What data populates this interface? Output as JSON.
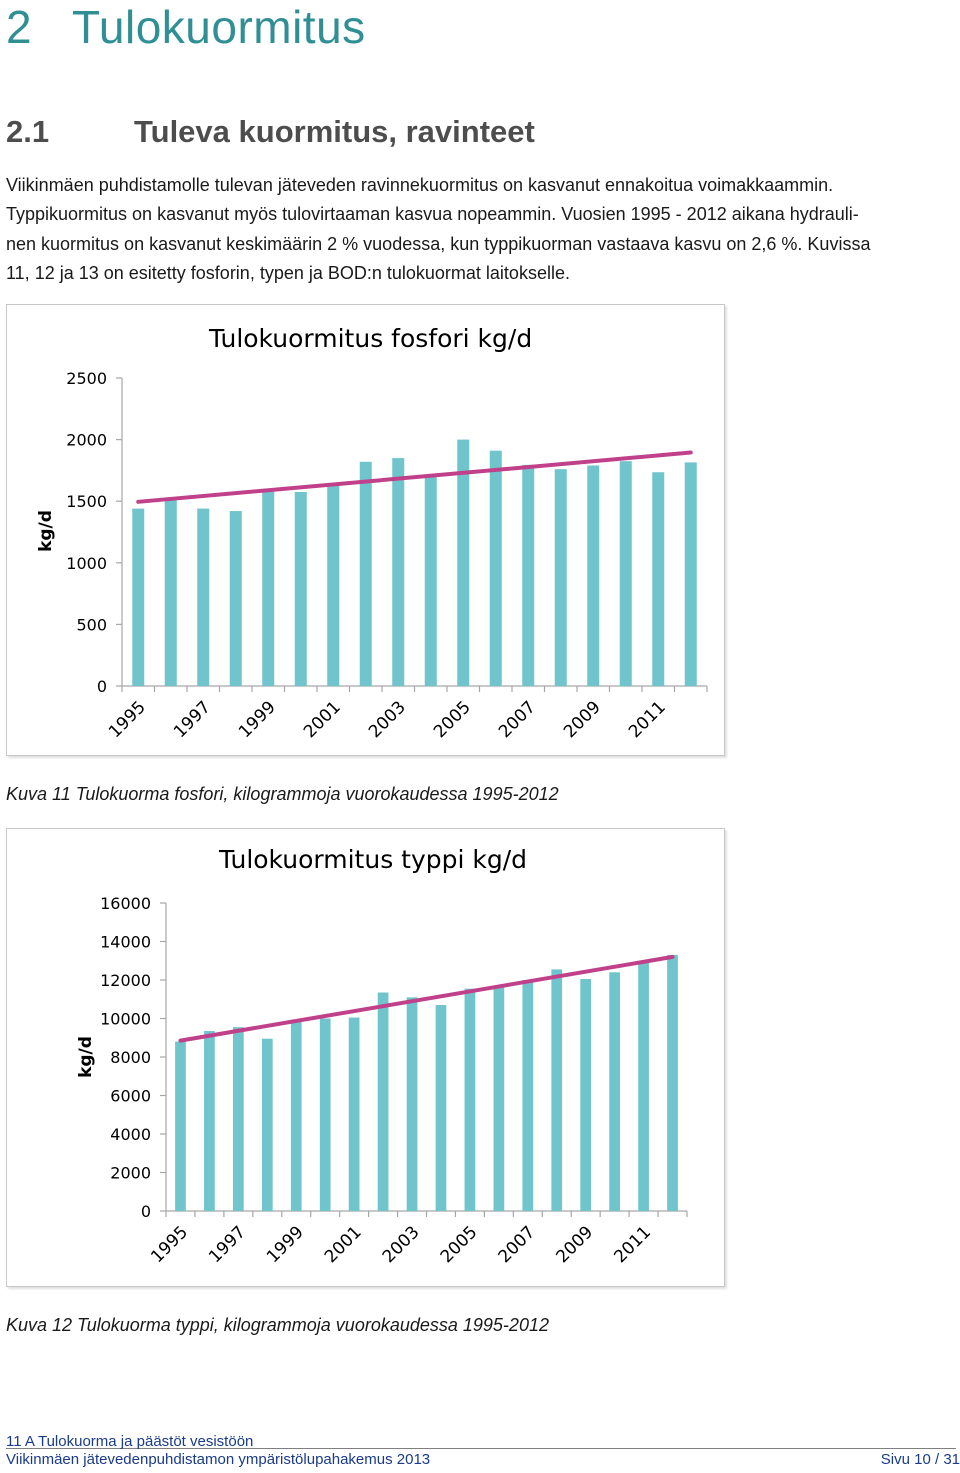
{
  "heading1": {
    "number": "2",
    "title": "Tulokuormitus"
  },
  "heading2": {
    "number": "2.1",
    "title": "Tuleva kuormitus, ravinteet"
  },
  "paragraph_lines": [
    "Viikinmäen puhdistamolle tulevan jäteveden ravinnekuormitus on kasvanut ennakoitua voimakkaammin.",
    "Typpikuormitus on kasvanut myös tulovirtaaman kasvua nopeammin. Vuosien 1995 - 2012 aikana hydrauli-",
    "nen kuormitus on kasvanut keskimäärin 2 % vuodessa, kun typpikuorman vastaava kasvu on 2,6 %. Kuvissa",
    "11, 12 ja 13 on esitetty fosforin, typen ja BOD:n tulokuormat laitokselle."
  ],
  "colors": {
    "heading": "#2f8f95",
    "bar": "#70c4cc",
    "trend": "#c0418a",
    "axis": "#a6a6a6",
    "footer": "#1a3a8a"
  },
  "chart_data": [
    {
      "type": "bar",
      "title": "Tulokuormitus fosfori kg/d",
      "ylabel": "kg/d",
      "xlabel": "",
      "ylim": [
        0,
        2500
      ],
      "yticks": [
        0,
        500,
        1000,
        1500,
        2000,
        2500
      ],
      "categories": [
        "1995",
        "1996",
        "1997",
        "1998",
        "1999",
        "2000",
        "2001",
        "2002",
        "2003",
        "2004",
        "2005",
        "2006",
        "2007",
        "2008",
        "2009",
        "2010",
        "2011",
        "2012"
      ],
      "x_tick_labels": [
        "1995",
        "1997",
        "1999",
        "2001",
        "2003",
        "2005",
        "2007",
        "2009",
        "2011"
      ],
      "values": [
        1440,
        1510,
        1440,
        1420,
        1590,
        1575,
        1645,
        1820,
        1850,
        1700,
        2000,
        1910,
        1795,
        1760,
        1790,
        1825,
        1735,
        1815
      ],
      "trendline": {
        "start": 1495,
        "end": 1895
      },
      "grid": false,
      "legend": "none"
    },
    {
      "type": "bar",
      "title": "Tulokuormitus typpi kg/d",
      "ylabel": "kg/d",
      "xlabel": "",
      "ylim": [
        0,
        16000
      ],
      "yticks": [
        0,
        2000,
        4000,
        6000,
        8000,
        10000,
        12000,
        14000,
        16000
      ],
      "categories": [
        "1995",
        "1996",
        "1997",
        "1998",
        "1999",
        "2000",
        "2001",
        "2002",
        "2003",
        "2004",
        "2005",
        "2006",
        "2007",
        "2008",
        "2009",
        "2010",
        "2011",
        "2012"
      ],
      "x_tick_labels": [
        "1995",
        "1997",
        "1999",
        "2001",
        "2003",
        "2005",
        "2007",
        "2009",
        "2011"
      ],
      "values": [
        8800,
        9350,
        9550,
        8950,
        9950,
        10000,
        10050,
        11350,
        11100,
        10700,
        11550,
        11650,
        12000,
        12550,
        12050,
        12400,
        12950,
        13300
      ],
      "trendline": {
        "start": 8850,
        "end": 13200
      },
      "grid": false,
      "legend": "none"
    }
  ],
  "captions": [
    "Kuva 11 Tulokuorma fosfori, kilogrammoja vuorokaudessa 1995-2012",
    "Kuva 12 Tulokuorma typpi, kilogrammoja vuorokaudessa 1995-2012"
  ],
  "footer": {
    "section": "11 A Tulokuorma ja päästöt vesistöön",
    "document": "Viikinmäen jätevedenpuhdistamon ympäristölupahakemus 2013",
    "page": "Sivu 10 / 31"
  }
}
